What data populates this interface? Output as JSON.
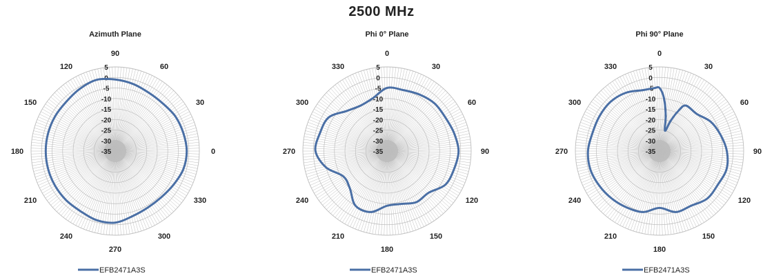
{
  "title": "2500 MHz",
  "legend_label": "EFB2471A3S",
  "colors": {
    "series": "#4a6fa5",
    "grid": "#bdbdbd",
    "center": "#c4c4c4"
  },
  "chart_data": [
    {
      "type": "polar",
      "title": "Azimuth Plane",
      "angle_direction": "counterclockwise",
      "zero_at": "right",
      "angle_labels": [
        "0",
        "30",
        "60",
        "90",
        "120",
        "150",
        "180",
        "210",
        "240",
        "270",
        "300",
        "330"
      ],
      "radial_labels": [
        "5",
        "0",
        "-5",
        "-10",
        "-15",
        "-20",
        "-25",
        "-30",
        "-35"
      ],
      "rlim": [
        -35,
        5
      ],
      "grid": true,
      "legend": "bottom",
      "series": [
        {
          "name": "EFB2471A3S",
          "angles": [
            0,
            15,
            30,
            45,
            60,
            75,
            90,
            105,
            120,
            135,
            150,
            165,
            180,
            195,
            210,
            225,
            240,
            255,
            270,
            285,
            300,
            315,
            330,
            345
          ],
          "values": [
            -1,
            -1.5,
            -2,
            -3,
            -3,
            -2,
            -1,
            0,
            -1,
            -2,
            -2,
            -2,
            -2,
            -2,
            -2,
            -2,
            -2,
            -1,
            -1,
            -3,
            -4,
            -4,
            -3,
            -1.5
          ]
        }
      ]
    },
    {
      "type": "polar",
      "title": "Phi 0° Plane",
      "angle_direction": "clockwise",
      "zero_at": "top",
      "angle_labels": [
        "0",
        "30",
        "60",
        "90",
        "120",
        "150",
        "180",
        "210",
        "240",
        "270",
        "300",
        "330"
      ],
      "radial_labels": [
        "5",
        "0",
        "-5",
        "-10",
        "-15",
        "-20",
        "-25",
        "-30",
        "-35"
      ],
      "rlim": [
        -35,
        5
      ],
      "grid": true,
      "legend": "bottom",
      "series": [
        {
          "name": "EFB2471A3S",
          "angles": [
            0,
            15,
            30,
            45,
            60,
            75,
            90,
            105,
            120,
            135,
            150,
            165,
            180,
            195,
            210,
            225,
            240,
            255,
            270,
            285,
            300,
            315,
            330,
            345
          ],
          "values": [
            -5,
            -5,
            -4,
            -3,
            -3,
            -2,
            -1,
            -2,
            -3,
            -7,
            -7,
            -9,
            -9,
            -5,
            -5,
            -10,
            -11,
            -5,
            -1,
            -2,
            -3,
            -8,
            -10,
            -9
          ]
        }
      ]
    },
    {
      "type": "polar",
      "title": "Phi 90° Plane",
      "angle_direction": "clockwise",
      "zero_at": "top",
      "angle_labels": [
        "0",
        "30",
        "60",
        "90",
        "120",
        "150",
        "180",
        "210",
        "240",
        "270",
        "300",
        "330"
      ],
      "radial_labels": [
        "5",
        "0",
        "-5",
        "-10",
        "-15",
        "-20",
        "-25",
        "-30",
        "-35"
      ],
      "rlim": [
        -35,
        5
      ],
      "grid": true,
      "legend": "bottom",
      "series": [
        {
          "name": "EFB2471A3S",
          "angles": [
            0,
            5,
            10,
            15,
            20,
            25,
            30,
            45,
            60,
            75,
            90,
            105,
            120,
            135,
            150,
            165,
            180,
            195,
            210,
            225,
            240,
            255,
            270,
            285,
            300,
            315,
            330,
            345,
            355
          ],
          "values": [
            -5,
            -10,
            -18,
            -25,
            -20,
            -14,
            -10,
            -10,
            -7,
            -5,
            -3,
            -2,
            -3,
            -3,
            -5,
            -5,
            -8,
            -5,
            -4,
            -3,
            -2,
            -1,
            -1,
            -2,
            -2,
            -2,
            -3,
            -5,
            -5
          ]
        }
      ]
    }
  ]
}
